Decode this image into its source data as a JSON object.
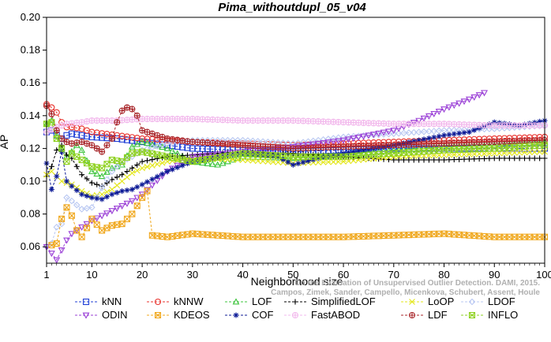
{
  "chart_data": {
    "type": "line",
    "title": "Pima_withoutdupl_05_v04",
    "xlabel": "Neighborhood size",
    "ylabel": "AP",
    "xlim": [
      1,
      100
    ],
    "ylim": [
      0.05,
      0.2
    ],
    "xticks": [
      1,
      10,
      20,
      30,
      40,
      50,
      60,
      70,
      80,
      90,
      100
    ],
    "yticks": [
      0.06,
      0.08,
      0.1,
      0.12,
      0.14,
      0.16,
      0.18,
      0.2
    ],
    "ytick_labels": [
      "0.06",
      "0.08",
      "0.10",
      "0.12",
      "0.14",
      "0.16",
      "0.18",
      "0.20"
    ],
    "grid": false,
    "legend_position": "bottom",
    "credit_lines": [
      "Campos, Zimek, Sander, Campello, Micenkova, Schubert, Assent, Houle",
      "On the Evaluation of Unsupervised Outlier Detection. DAMI, 2015."
    ],
    "series": [
      {
        "name": "kNN",
        "color": "#1f3fd6",
        "marker": "square",
        "end": 100,
        "points": [
          [
            1,
            0.13
          ],
          [
            2,
            0.131
          ],
          [
            3,
            0.128
          ],
          [
            4,
            0.126
          ],
          [
            5,
            0.128
          ],
          [
            6,
            0.129
          ],
          [
            8,
            0.128
          ],
          [
            10,
            0.127
          ],
          [
            15,
            0.126
          ],
          [
            20,
            0.124
          ],
          [
            25,
            0.122
          ],
          [
            30,
            0.12
          ],
          [
            40,
            0.119
          ],
          [
            50,
            0.118
          ],
          [
            60,
            0.119
          ],
          [
            70,
            0.12
          ],
          [
            80,
            0.12
          ],
          [
            90,
            0.12
          ],
          [
            100,
            0.12
          ]
        ]
      },
      {
        "name": "kNNW",
        "color": "#e8322d",
        "marker": "circle",
        "end": 100,
        "points": [
          [
            1,
            0.147
          ],
          [
            2,
            0.145
          ],
          [
            3,
            0.142
          ],
          [
            4,
            0.136
          ],
          [
            5,
            0.133
          ],
          [
            6,
            0.133
          ],
          [
            8,
            0.132
          ],
          [
            10,
            0.13
          ],
          [
            15,
            0.128
          ],
          [
            20,
            0.126
          ],
          [
            25,
            0.125
          ],
          [
            30,
            0.124
          ],
          [
            40,
            0.123
          ],
          [
            50,
            0.122
          ],
          [
            60,
            0.123
          ],
          [
            70,
            0.124
          ],
          [
            80,
            0.125
          ],
          [
            90,
            0.126
          ],
          [
            100,
            0.127
          ]
        ]
      },
      {
        "name": "LOF",
        "color": "#3ec43e",
        "marker": "triangle-up",
        "end": 100,
        "points": [
          [
            1,
            0.135
          ],
          [
            2,
            0.137
          ],
          [
            3,
            0.128
          ],
          [
            4,
            0.12
          ],
          [
            5,
            0.115
          ],
          [
            6,
            0.118
          ],
          [
            7,
            0.122
          ],
          [
            8,
            0.119
          ],
          [
            10,
            0.106
          ],
          [
            12,
            0.103
          ],
          [
            14,
            0.108
          ],
          [
            16,
            0.11
          ],
          [
            18,
            0.121
          ],
          [
            20,
            0.124
          ],
          [
            25,
            0.12
          ],
          [
            30,
            0.112
          ],
          [
            35,
            0.11
          ],
          [
            40,
            0.115
          ],
          [
            50,
            0.114
          ],
          [
            60,
            0.116
          ],
          [
            70,
            0.119
          ],
          [
            80,
            0.121
          ],
          [
            90,
            0.122
          ],
          [
            100,
            0.124
          ]
        ]
      },
      {
        "name": "SimplifiedLOF",
        "color": "#000000",
        "marker": "plus",
        "end": 100,
        "points": [
          [
            1,
            0.103
          ],
          [
            2,
            0.109
          ],
          [
            3,
            0.119
          ],
          [
            4,
            0.122
          ],
          [
            5,
            0.116
          ],
          [
            6,
            0.114
          ],
          [
            8,
            0.104
          ],
          [
            10,
            0.099
          ],
          [
            12,
            0.097
          ],
          [
            14,
            0.101
          ],
          [
            16,
            0.104
          ],
          [
            18,
            0.108
          ],
          [
            20,
            0.112
          ],
          [
            25,
            0.115
          ],
          [
            30,
            0.116
          ],
          [
            40,
            0.118
          ],
          [
            50,
            0.117
          ],
          [
            60,
            0.115
          ],
          [
            70,
            0.113
          ],
          [
            80,
            0.113
          ],
          [
            90,
            0.114
          ],
          [
            100,
            0.114
          ]
        ]
      },
      {
        "name": "LoOP",
        "color": "#e3e619",
        "marker": "x",
        "end": 100,
        "points": [
          [
            1,
            0.104
          ],
          [
            2,
            0.106
          ],
          [
            4,
            0.1
          ],
          [
            6,
            0.098
          ],
          [
            8,
            0.094
          ],
          [
            10,
            0.091
          ],
          [
            12,
            0.092
          ],
          [
            14,
            0.095
          ],
          [
            16,
            0.1
          ],
          [
            18,
            0.105
          ],
          [
            20,
            0.108
          ],
          [
            25,
            0.112
          ],
          [
            30,
            0.114
          ],
          [
            40,
            0.113
          ],
          [
            50,
            0.111
          ],
          [
            60,
            0.112
          ],
          [
            70,
            0.115
          ],
          [
            80,
            0.116
          ],
          [
            90,
            0.117
          ],
          [
            100,
            0.118
          ]
        ]
      },
      {
        "name": "LDOF",
        "color": "#b9c8f2",
        "marker": "diamond",
        "end": 100,
        "points": [
          [
            1,
            0.06
          ],
          [
            2,
            0.062
          ],
          [
            3,
            0.072
          ],
          [
            4,
            0.074
          ],
          [
            5,
            0.09
          ],
          [
            6,
            0.088
          ],
          [
            8,
            0.083
          ],
          [
            10,
            0.084
          ],
          [
            12,
            0.096
          ],
          [
            14,
            0.106
          ],
          [
            16,
            0.112
          ],
          [
            18,
            0.115
          ],
          [
            20,
            0.119
          ],
          [
            25,
            0.123
          ],
          [
            30,
            0.125
          ],
          [
            40,
            0.125
          ],
          [
            50,
            0.123
          ],
          [
            60,
            0.127
          ],
          [
            70,
            0.129
          ],
          [
            80,
            0.131
          ],
          [
            90,
            0.132
          ],
          [
            100,
            0.134
          ]
        ]
      },
      {
        "name": "ODIN",
        "color": "#9a3fd6",
        "marker": "triangle-down",
        "end": 88,
        "points": [
          [
            1,
            0.06
          ],
          [
            2,
            0.056
          ],
          [
            3,
            0.052
          ],
          [
            4,
            0.058
          ],
          [
            5,
            0.064
          ],
          [
            6,
            0.068
          ],
          [
            8,
            0.072
          ],
          [
            10,
            0.076
          ],
          [
            12,
            0.079
          ],
          [
            14,
            0.082
          ],
          [
            16,
            0.085
          ],
          [
            18,
            0.088
          ],
          [
            20,
            0.092
          ],
          [
            25,
            0.106
          ],
          [
            30,
            0.115
          ],
          [
            40,
            0.118
          ],
          [
            50,
            0.121
          ],
          [
            60,
            0.125
          ],
          [
            70,
            0.131
          ],
          [
            75,
            0.137
          ],
          [
            80,
            0.144
          ],
          [
            85,
            0.15
          ],
          [
            88,
            0.154
          ]
        ]
      },
      {
        "name": "KDEOS",
        "color": "#f0a81e",
        "marker": "square-x",
        "end": 100,
        "points": [
          [
            2,
            0.061
          ],
          [
            3,
            0.062
          ],
          [
            4,
            0.077
          ],
          [
            5,
            0.084
          ],
          [
            6,
            0.079
          ],
          [
            7,
            0.07
          ],
          [
            8,
            0.066
          ],
          [
            10,
            0.077
          ],
          [
            12,
            0.07
          ],
          [
            14,
            0.073
          ],
          [
            16,
            0.074
          ],
          [
            18,
            0.08
          ],
          [
            20,
            0.09
          ],
          [
            21,
            0.094
          ],
          [
            22,
            0.067
          ],
          [
            25,
            0.066
          ],
          [
            30,
            0.068
          ],
          [
            40,
            0.066
          ],
          [
            50,
            0.066
          ],
          [
            60,
            0.066
          ],
          [
            70,
            0.067
          ],
          [
            80,
            0.068
          ],
          [
            90,
            0.066
          ],
          [
            100,
            0.066
          ]
        ]
      },
      {
        "name": "COF",
        "color": "#0c1a96",
        "marker": "asterisk",
        "end": 100,
        "points": [
          [
            1,
            0.111
          ],
          [
            2,
            0.095
          ],
          [
            3,
            0.103
          ],
          [
            4,
            0.118
          ],
          [
            5,
            0.1
          ],
          [
            6,
            0.097
          ],
          [
            8,
            0.092
          ],
          [
            10,
            0.09
          ],
          [
            12,
            0.089
          ],
          [
            14,
            0.092
          ],
          [
            16,
            0.094
          ],
          [
            18,
            0.095
          ],
          [
            20,
            0.098
          ],
          [
            25,
            0.106
          ],
          [
            30,
            0.112
          ],
          [
            40,
            0.117
          ],
          [
            47,
            0.115
          ],
          [
            50,
            0.11
          ],
          [
            55,
            0.114
          ],
          [
            60,
            0.117
          ],
          [
            70,
            0.122
          ],
          [
            80,
            0.128
          ],
          [
            85,
            0.13
          ],
          [
            90,
            0.136
          ],
          [
            95,
            0.134
          ],
          [
            100,
            0.137
          ]
        ]
      },
      {
        "name": "FastABOD",
        "color": "#f2b8ec",
        "marker": "circle-plus",
        "end": 100,
        "points": [
          [
            1,
            0.13
          ],
          [
            3,
            0.133
          ],
          [
            5,
            0.135
          ],
          [
            8,
            0.136
          ],
          [
            10,
            0.137
          ],
          [
            15,
            0.137
          ],
          [
            20,
            0.138
          ],
          [
            30,
            0.138
          ],
          [
            40,
            0.137
          ],
          [
            50,
            0.137
          ],
          [
            60,
            0.136
          ],
          [
            70,
            0.135
          ],
          [
            80,
            0.135
          ],
          [
            90,
            0.134
          ],
          [
            100,
            0.134
          ]
        ]
      },
      {
        "name": "LDF",
        "color": "#a8262a",
        "marker": "circle-plus",
        "end": 100,
        "points": [
          [
            1,
            0.146
          ],
          [
            2,
            0.141
          ],
          [
            3,
            0.131
          ],
          [
            4,
            0.126
          ],
          [
            5,
            0.124
          ],
          [
            6,
            0.123
          ],
          [
            8,
            0.124
          ],
          [
            10,
            0.122
          ],
          [
            12,
            0.118
          ],
          [
            14,
            0.126
          ],
          [
            15,
            0.136
          ],
          [
            16,
            0.143
          ],
          [
            17,
            0.145
          ],
          [
            18,
            0.144
          ],
          [
            19,
            0.14
          ],
          [
            20,
            0.131
          ],
          [
            25,
            0.126
          ],
          [
            30,
            0.124
          ],
          [
            40,
            0.122
          ],
          [
            50,
            0.12
          ],
          [
            60,
            0.121
          ],
          [
            70,
            0.122
          ],
          [
            80,
            0.123
          ],
          [
            90,
            0.124
          ],
          [
            100,
            0.125
          ]
        ]
      },
      {
        "name": "INFLO",
        "color": "#8ed11f",
        "marker": "square-x",
        "end": 100,
        "points": [
          [
            1,
            0.135
          ],
          [
            2,
            0.136
          ],
          [
            3,
            0.126
          ],
          [
            4,
            0.12
          ],
          [
            5,
            0.112
          ],
          [
            6,
            0.117
          ],
          [
            8,
            0.113
          ],
          [
            10,
            0.109
          ],
          [
            12,
            0.108
          ],
          [
            14,
            0.113
          ],
          [
            16,
            0.112
          ],
          [
            18,
            0.117
          ],
          [
            20,
            0.118
          ],
          [
            25,
            0.115
          ],
          [
            30,
            0.112
          ],
          [
            40,
            0.117
          ],
          [
            50,
            0.115
          ],
          [
            60,
            0.115
          ],
          [
            70,
            0.117
          ],
          [
            80,
            0.119
          ],
          [
            90,
            0.12
          ],
          [
            100,
            0.122
          ]
        ]
      }
    ]
  }
}
